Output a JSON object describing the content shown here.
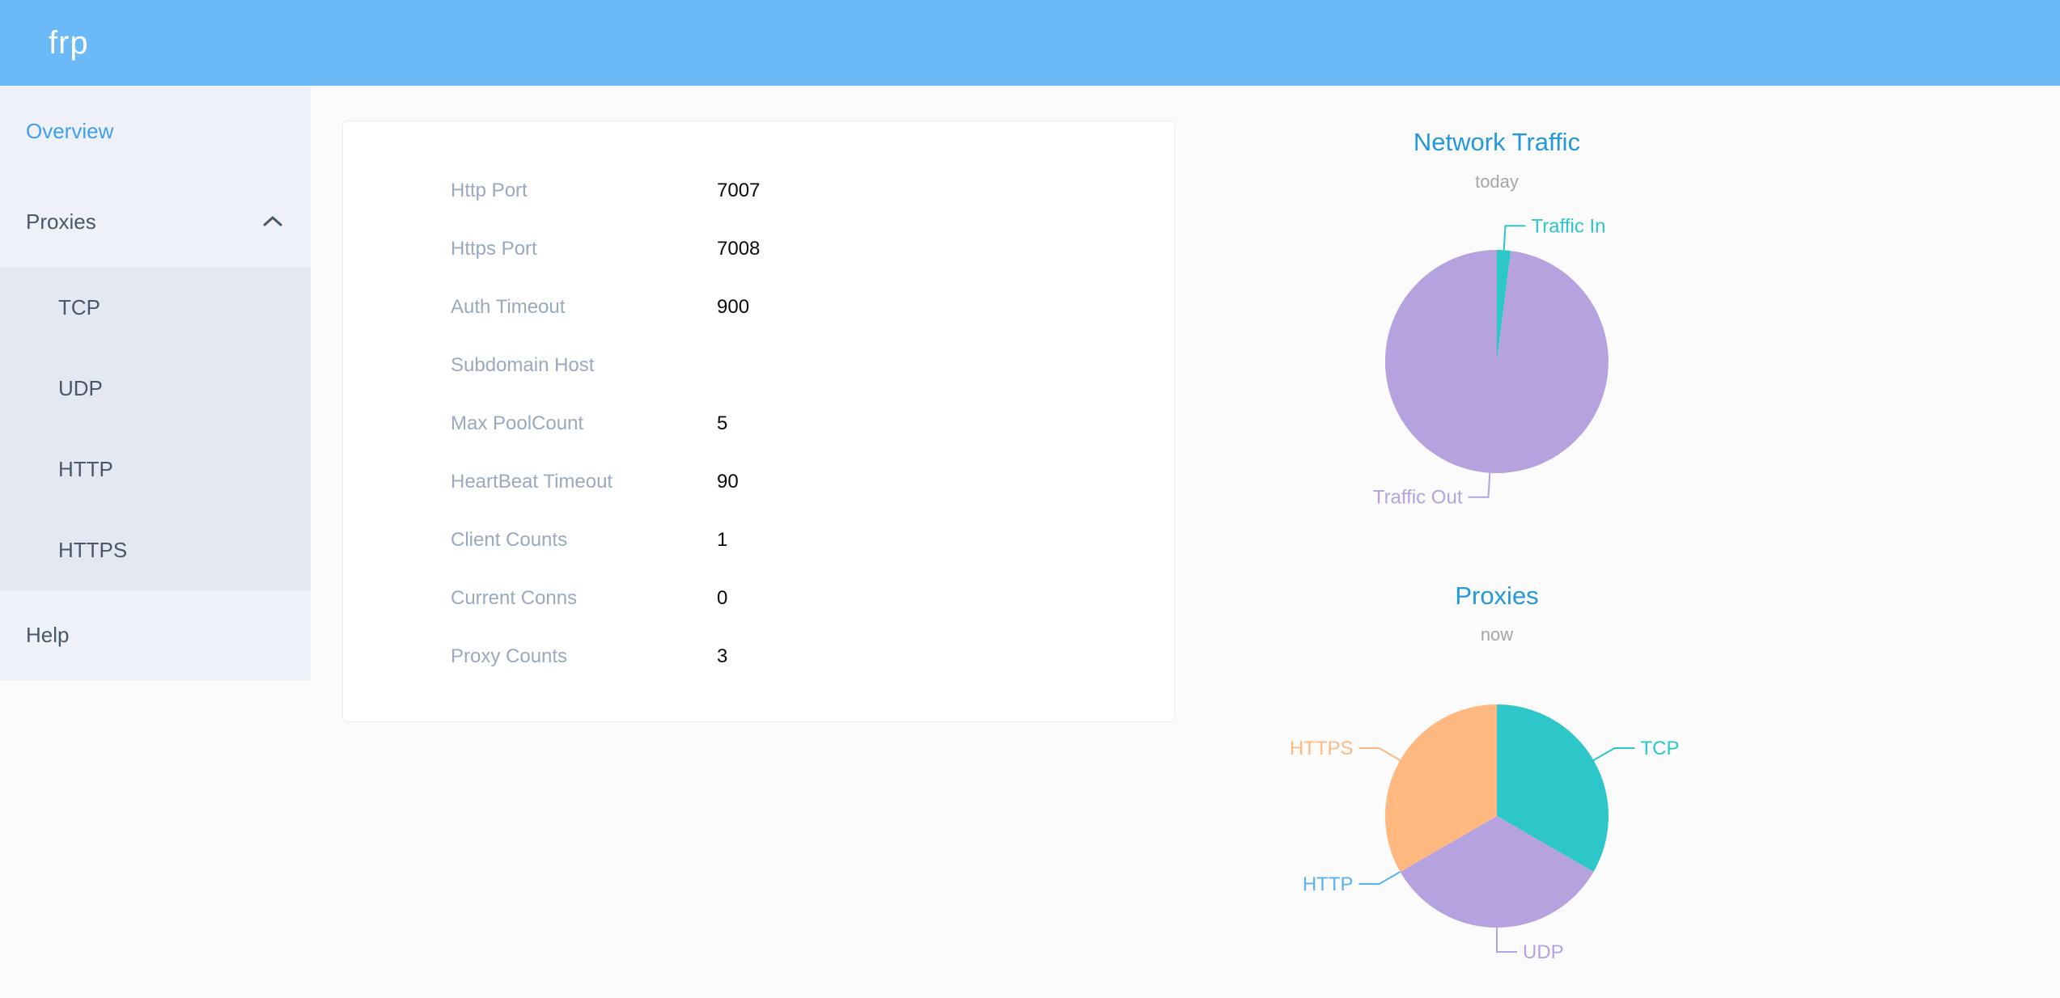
{
  "header": {
    "logo": "frp"
  },
  "sidebar": {
    "items": [
      {
        "label": "Overview",
        "active": true
      },
      {
        "label": "Proxies",
        "expanded": true
      },
      {
        "label": "TCP"
      },
      {
        "label": "UDP"
      },
      {
        "label": "HTTP"
      },
      {
        "label": "HTTPS"
      },
      {
        "label": "Help"
      }
    ]
  },
  "config_card": {
    "rows": [
      {
        "label": "Http Port",
        "value": "7007"
      },
      {
        "label": "Https Port",
        "value": "7008"
      },
      {
        "label": "Auth Timeout",
        "value": "900"
      },
      {
        "label": "Subdomain Host",
        "value": ""
      },
      {
        "label": "Max PoolCount",
        "value": "5"
      },
      {
        "label": "HeartBeat Timeout",
        "value": "90"
      },
      {
        "label": "Client Counts",
        "value": "1"
      },
      {
        "label": "Current Conns",
        "value": "0"
      },
      {
        "label": "Proxy Counts",
        "value": "3"
      }
    ]
  },
  "colors": {
    "header_bg": "#6cb9f8",
    "menu_bg": "#eef2f8",
    "submenu_bg": "#e4e9f1",
    "menu_text": "#48576a",
    "menu_active": "#3f9ff5",
    "chart_title": "#2598dc",
    "label_gray": "#99a9bf",
    "teal": "#2ec7c9",
    "purple": "#b6a2de",
    "blue": "#5ab1ef",
    "orange": "#ffb980"
  },
  "chart_data": [
    {
      "type": "pie",
      "title": "Network Traffic",
      "subtitle": "today",
      "legend_position": "none",
      "series": [
        {
          "name": "Traffic In",
          "value": 2,
          "color": "#2ec7c9"
        },
        {
          "name": "Traffic Out",
          "value": 98,
          "color": "#b6a2de"
        }
      ]
    },
    {
      "type": "pie",
      "title": "Proxies",
      "subtitle": "now",
      "legend_position": "none",
      "series": [
        {
          "name": "TCP",
          "value": 1,
          "color": "#2ec7c9"
        },
        {
          "name": "UDP",
          "value": 1,
          "color": "#b6a2de"
        },
        {
          "name": "HTTP",
          "value": 0,
          "color": "#5ab1ef"
        },
        {
          "name": "HTTPS",
          "value": 1,
          "color": "#ffb980"
        }
      ]
    }
  ]
}
